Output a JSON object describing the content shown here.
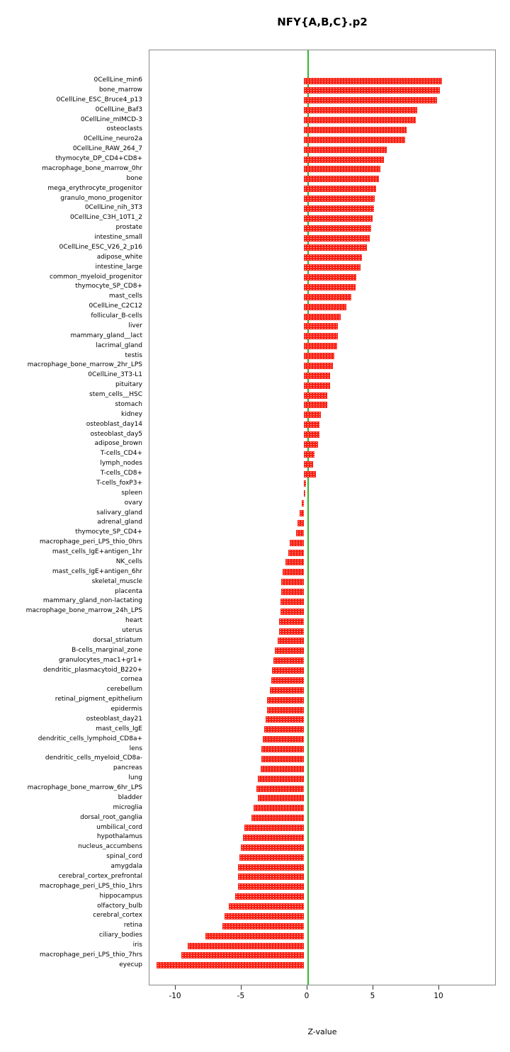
{
  "chart_data": {
    "type": "bar",
    "orientation": "horizontal",
    "title": "NFY{A,B,C}.p2",
    "xlabel": "Z-value",
    "x_ticks": [
      -10,
      -5,
      0,
      5,
      10
    ],
    "xlim": [
      -12,
      14.3
    ],
    "grid": false,
    "legend": "none",
    "bar_color": "#f81f12",
    "zero_line_color": "#2eb82e",
    "categories": [
      "0CellLine_min6",
      "bone_marrow",
      "0CellLine_ESC_Bruce4_p13",
      "0CellLine_Baf3",
      "0CellLine_mIMCD-3",
      "osteoclasts",
      "0CellLine_neuro2a",
      "0CellLine_RAW_264_7",
      "thymocyte_DP_CD4+CD8+",
      "macrophage_bone_marrow_0hr",
      "bone",
      "mega_erythrocyte_progenitor",
      "granulo_mono_progenitor",
      "0CellLine_nih_3T3",
      "0CellLine_C3H_10T1_2",
      "prostate",
      "intestine_small",
      "0CellLine_ESC_V26_2_p16",
      "adipose_white",
      "intestine_large",
      "common_myeloid_progenitor",
      "thymocyte_SP_CD8+",
      "mast_cells",
      "0CellLine_C2C12",
      "follicular_B-cells",
      "liver",
      "mammary_gland__lact",
      "lacrimal_gland",
      "testis",
      "macrophage_bone_marrow_2hr_LPS",
      "0CellLine_3T3-L1",
      "pituitary",
      "stem_cells__HSC",
      "stomach",
      "kidney",
      "osteoblast_day14",
      "osteoblast_day5",
      "adipose_brown",
      "T-cells_CD4+",
      "lymph_nodes",
      "T-cells_CD8+",
      "T-cells_foxP3+",
      "spleen",
      "ovary",
      "salivary_gland",
      "adrenal_gland",
      "thymocyte_SP_CD4+",
      "macrophage_peri_LPS_thio_0hrs",
      "mast_cells_IgE+antigen_1hr",
      "NK_cells",
      "mast_cells_IgE+antigen_6hr",
      "skeletal_muscle",
      "placenta",
      "mammary_gland_non-lactating",
      "macrophage_bone_marrow_24h_LPS",
      "heart",
      "uterus",
      "dorsal_striatum",
      "B-cells_marginal_zone",
      "granulocytes_mac1+gr1+",
      "dendritic_plasmacytoid_B220+",
      "cornea",
      "cerebellum",
      "retinal_pigment_epithelium",
      "epidermis",
      "osteoblast_day21",
      "mast_cells_IgE",
      "dendritic_cells_lymphoid_CD8a+",
      "lens",
      "dendritic_cells_myeloid_CD8a-",
      "pancreas",
      "lung",
      "macrophage_bone_marrow_6hr_LPS",
      "bladder",
      "microglia",
      "dorsal_root_ganglia",
      "umbilical_cord",
      "hypothalamus",
      "nucleus_accumbens",
      "spinal_cord",
      "amygdala",
      "cerebral_cortex_prefrontal",
      "macrophage_peri_LPS_thio_1hrs",
      "hippocampus",
      "olfactory_bulb",
      "cerebral_cortex",
      "retina",
      "ciliary_bodies",
      "iris",
      "macrophage_peri_LPS_thio_7hrs",
      "eyecup"
    ],
    "values": [
      10.5,
      10.3,
      10.1,
      8.6,
      8.5,
      7.8,
      7.7,
      6.3,
      6.1,
      5.8,
      5.7,
      5.5,
      5.4,
      5.3,
      5.2,
      5.1,
      5.0,
      4.8,
      4.4,
      4.3,
      4.0,
      3.9,
      3.6,
      3.2,
      2.8,
      2.6,
      2.6,
      2.5,
      2.3,
      2.2,
      2.0,
      2.0,
      1.8,
      1.8,
      1.3,
      1.2,
      1.2,
      1.1,
      0.8,
      0.7,
      0.9,
      0.15,
      0.1,
      -0.15,
      -0.3,
      -0.5,
      -0.6,
      -1.1,
      -1.2,
      -1.4,
      -1.6,
      -1.7,
      -1.7,
      -1.8,
      -1.8,
      -1.9,
      -1.9,
      -2.0,
      -2.2,
      -2.3,
      -2.4,
      -2.5,
      -2.6,
      -2.8,
      -2.8,
      -2.9,
      -3.0,
      -3.1,
      -3.2,
      -3.2,
      -3.3,
      -3.5,
      -3.6,
      -3.5,
      -3.8,
      -4.0,
      -4.5,
      -4.6,
      -4.8,
      -4.9,
      -5.0,
      -5.0,
      -5.0,
      -5.2,
      -5.7,
      -6.0,
      -6.2,
      -7.5,
      -8.8,
      -9.3,
      -11.2
    ]
  }
}
